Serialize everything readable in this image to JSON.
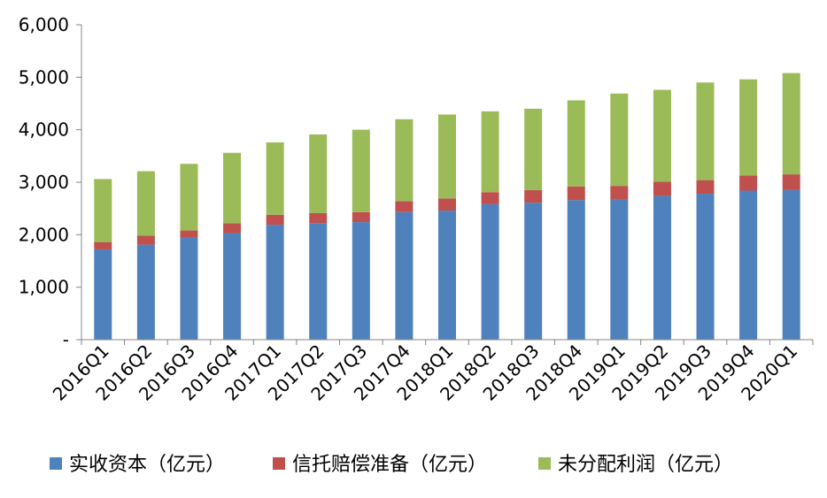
{
  "chart_data": {
    "type": "bar",
    "stacked": true,
    "categories": [
      "2016Q1",
      "2016Q2",
      "2016Q3",
      "2016Q4",
      "2017Q1",
      "2017Q2",
      "2017Q3",
      "2017Q4",
      "2018Q1",
      "2018Q2",
      "2018Q3",
      "2018Q4",
      "2019Q1",
      "2019Q2",
      "2019Q3",
      "2019Q4",
      "2020Q1"
    ],
    "series": [
      {
        "name": "实收资本（亿元）",
        "color": "#4F81BD",
        "values": [
          1720,
          1810,
          1940,
          2030,
          2190,
          2220,
          2240,
          2430,
          2460,
          2580,
          2610,
          2660,
          2670,
          2740,
          2780,
          2840,
          2850
        ]
      },
      {
        "name": "信托赔偿准备（亿元）",
        "color": "#C0504D",
        "values": [
          140,
          170,
          140,
          190,
          190,
          190,
          190,
          210,
          230,
          230,
          240,
          260,
          260,
          270,
          260,
          290,
          300
        ]
      },
      {
        "name": "未分配利润（亿元）",
        "color": "#9BBB59",
        "values": [
          1200,
          1230,
          1270,
          1340,
          1380,
          1500,
          1570,
          1560,
          1600,
          1540,
          1550,
          1640,
          1760,
          1750,
          1860,
          1830,
          1930
        ]
      }
    ],
    "yticks": [
      {
        "value": 0,
        "label": "-"
      },
      {
        "value": 1000,
        "label": "1,000"
      },
      {
        "value": 2000,
        "label": "2,000"
      },
      {
        "value": 3000,
        "label": "3,000"
      },
      {
        "value": 4000,
        "label": "4,000"
      },
      {
        "value": 5000,
        "label": "5,000"
      },
      {
        "value": 6000,
        "label": "6,000"
      }
    ],
    "ylim": [
      0,
      6000
    ],
    "grid": false,
    "legend_position": "bottom",
    "title": "",
    "xlabel": "",
    "ylabel": ""
  }
}
